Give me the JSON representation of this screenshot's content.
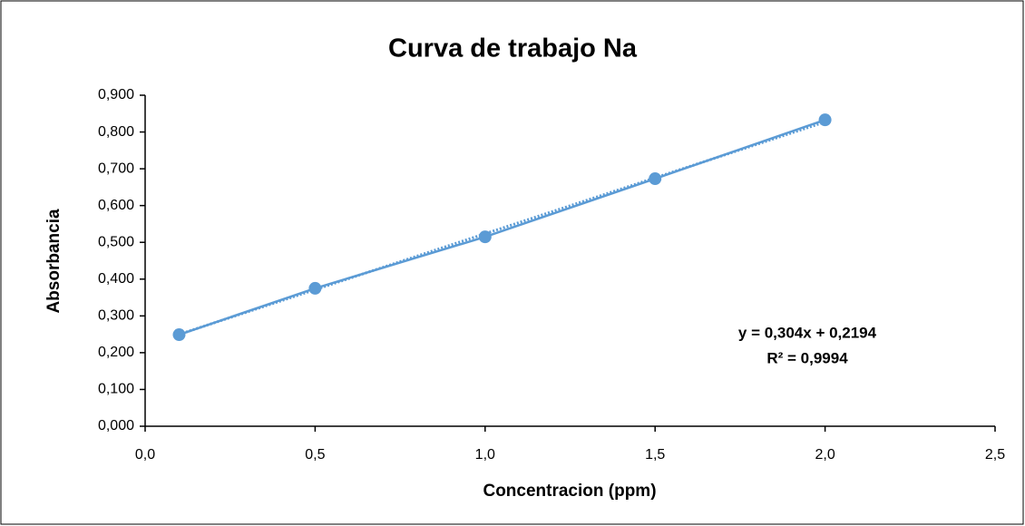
{
  "chart_data": {
    "type": "scatter_line",
    "title": "Curva de trabajo Na",
    "xlabel": "Concentracion (ppm)",
    "ylabel": "Absorbancia",
    "x": [
      0.1,
      0.5,
      1.0,
      1.5,
      2.0
    ],
    "series": [
      {
        "color": "#5b9bd5",
        "values": [
          0.249,
          0.375,
          0.515,
          0.673,
          0.833
        ]
      }
    ],
    "xlim": [
      0,
      2.5
    ],
    "xticks": [
      {
        "value": 0,
        "label": "0,0"
      },
      {
        "value": 0.5,
        "label": "0,5"
      },
      {
        "value": 1.0,
        "label": "1,0"
      },
      {
        "value": 1.5,
        "label": "1,5"
      },
      {
        "value": 2.0,
        "label": "2,0"
      },
      {
        "value": 2.5,
        "label": "2,5"
      }
    ],
    "ylim": [
      0,
      0.9
    ],
    "yticks": [
      {
        "value": 0,
        "label": "0,000"
      },
      {
        "value": 0.1,
        "label": "0,100"
      },
      {
        "value": 0.2,
        "label": "0,200"
      },
      {
        "value": 0.3,
        "label": "0,300"
      },
      {
        "value": 0.4,
        "label": "0,400"
      },
      {
        "value": 0.5,
        "label": "0,500"
      },
      {
        "value": 0.6,
        "label": "0,600"
      },
      {
        "value": 0.7,
        "label": "0,700"
      },
      {
        "value": 0.8,
        "label": "0,800"
      },
      {
        "value": 0.9,
        "label": "0,900"
      }
    ],
    "trendline": {
      "equation": "y = 0,304x + 0,2194",
      "r2": "R² = 0,9994",
      "slope": 0.304,
      "intercept": 0.2194
    }
  }
}
